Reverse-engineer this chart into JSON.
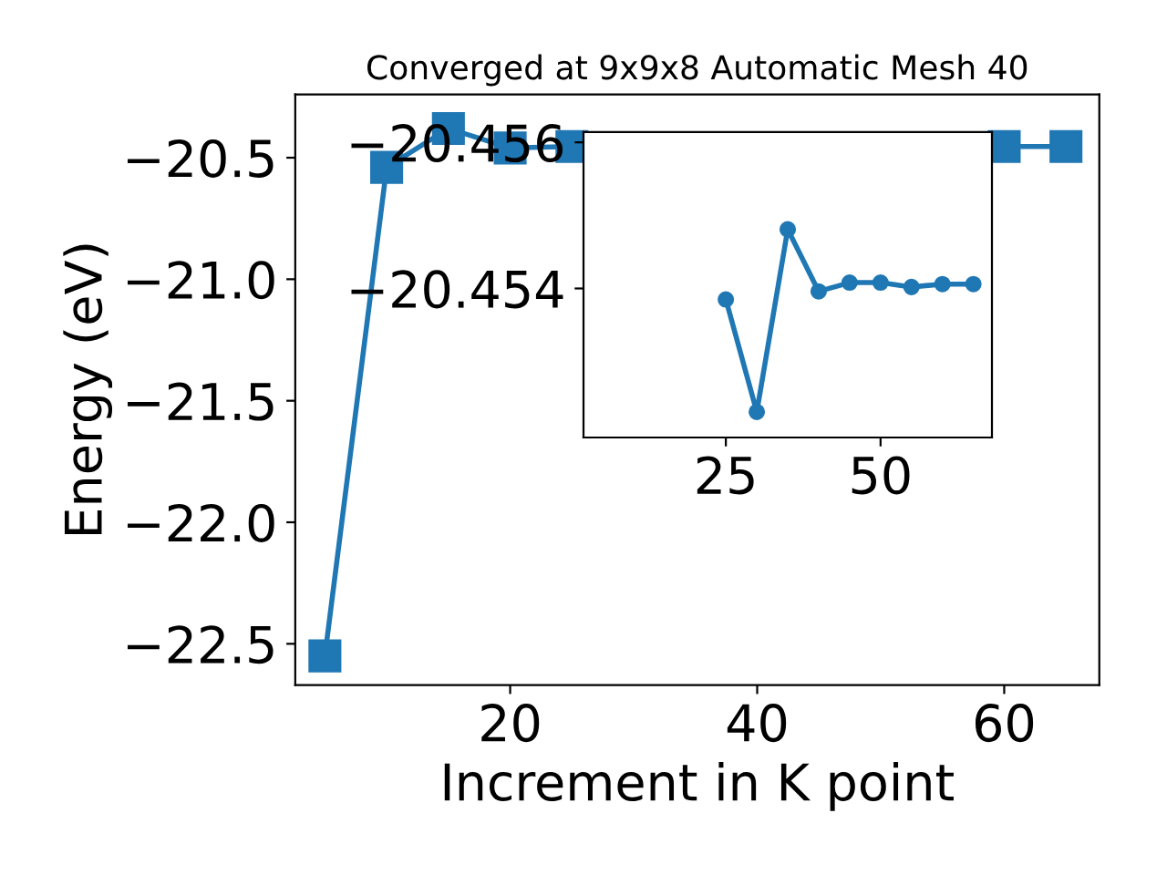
{
  "chart_data": [
    {
      "type": "line",
      "title": "Converged at 9x9x8 Automatic Mesh 40",
      "xlabel": "Increment in K point",
      "ylabel": "Energy (eV)",
      "x": [
        5,
        10,
        15,
        20,
        25,
        30,
        35,
        40,
        45,
        50,
        55,
        60,
        65
      ],
      "series": [
        {
          "color": "#1f77b4",
          "values": [
            -22.55,
            -20.54,
            -20.38,
            -20.46,
            -20.454,
            null,
            null,
            null,
            null,
            null,
            null,
            -20.454,
            -20.454
          ]
        }
      ],
      "marker": "square",
      "line_style": "solid",
      "grid": false,
      "xlim": [
        2.6,
        67.7
      ],
      "ylim": [
        -22.67,
        -20.24
      ],
      "xticks": [
        20,
        40,
        60
      ],
      "yticks": [
        -22.5,
        {
          "value": -22.0,
          "label": "−22.0"
        },
        -21.5,
        {
          "value": -21.0,
          "label": "−21.0"
        },
        -20.5
      ]
    },
    {
      "type": "line",
      "x": [
        25,
        30,
        35,
        40,
        45,
        50,
        55,
        60,
        65
      ],
      "series": [
        {
          "color": "#1f77b4",
          "values": [
            -20.45385,
            -20.45231,
            -20.45481,
            -20.45396,
            -20.45408,
            -20.45408,
            -20.45402,
            -20.45406,
            -20.45406
          ]
        }
      ],
      "marker": "circle",
      "line_style": "solid",
      "grid": false,
      "xlim": [
        2,
        68
      ],
      "ylim": [
        -20.45196,
        -20.45614
      ],
      "xticks": [
        25,
        50
      ],
      "yticks": [
        -20.456,
        -20.454
      ]
    }
  ]
}
